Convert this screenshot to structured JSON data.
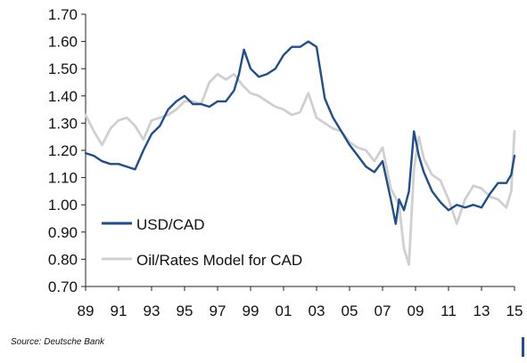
{
  "chart_data": {
    "type": "line",
    "title": "",
    "xlabel": "",
    "ylabel": "",
    "xlim": [
      1989.0,
      2015.0
    ],
    "ylim": [
      0.7,
      1.7
    ],
    "x_ticks": [
      1989,
      1991,
      1993,
      1995,
      1997,
      1999,
      2001,
      2003,
      2005,
      2007,
      2009,
      2011,
      2013,
      2015
    ],
    "x_tick_labels": [
      "89",
      "91",
      "93",
      "95",
      "97",
      "99",
      "01",
      "03",
      "05",
      "07",
      "09",
      "11",
      "13",
      "15"
    ],
    "y_ticks": [
      0.7,
      0.8,
      0.9,
      1.0,
      1.1,
      1.2,
      1.3,
      1.4,
      1.5,
      1.6,
      1.7
    ],
    "y_tick_labels": [
      "0.70",
      "0.80",
      "0.90",
      "1.00",
      "1.10",
      "1.20",
      "1.30",
      "1.40",
      "1.50",
      "1.60",
      "1.70"
    ],
    "grid": false,
    "legend_position": "bottom-left",
    "series": [
      {
        "name": "USD/CAD",
        "color": "#1f4e8c",
        "x": [
          1989.0,
          1989.5,
          1990.0,
          1990.5,
          1991.0,
          1991.5,
          1992.0,
          1992.5,
          1993.0,
          1993.5,
          1994.0,
          1994.5,
          1995.0,
          1995.5,
          1996.0,
          1996.5,
          1997.0,
          1997.5,
          1998.0,
          1998.3,
          1998.6,
          1999.0,
          1999.5,
          2000.0,
          2000.5,
          2001.0,
          2001.5,
          2002.0,
          2002.5,
          2003.0,
          2003.5,
          2004.0,
          2004.5,
          2005.0,
          2005.5,
          2006.0,
          2006.5,
          2007.0,
          2007.5,
          2007.8,
          2008.0,
          2008.3,
          2008.6,
          2008.9,
          2009.2,
          2009.5,
          2010.0,
          2010.5,
          2011.0,
          2011.5,
          2012.0,
          2012.5,
          2013.0,
          2013.5,
          2014.0,
          2014.5,
          2014.8,
          2015.0
        ],
        "values": [
          1.19,
          1.18,
          1.16,
          1.15,
          1.15,
          1.14,
          1.13,
          1.2,
          1.26,
          1.29,
          1.35,
          1.38,
          1.4,
          1.37,
          1.37,
          1.36,
          1.38,
          1.38,
          1.42,
          1.48,
          1.57,
          1.5,
          1.47,
          1.48,
          1.5,
          1.55,
          1.58,
          1.58,
          1.6,
          1.58,
          1.39,
          1.32,
          1.27,
          1.22,
          1.18,
          1.14,
          1.12,
          1.16,
          1.02,
          0.93,
          1.02,
          0.98,
          1.05,
          1.27,
          1.18,
          1.12,
          1.05,
          1.01,
          0.98,
          1.0,
          0.99,
          1.0,
          0.99,
          1.04,
          1.08,
          1.08,
          1.11,
          1.18
        ]
      },
      {
        "name": "Oil/Rates Model for CAD",
        "color": "#d0d0d0",
        "x": [
          1989.0,
          1989.5,
          1990.0,
          1990.5,
          1991.0,
          1991.5,
          1992.0,
          1992.5,
          1993.0,
          1993.5,
          1994.0,
          1994.5,
          1995.0,
          1995.5,
          1996.0,
          1996.5,
          1997.0,
          1997.5,
          1998.0,
          1998.5,
          1999.0,
          1999.5,
          2000.0,
          2000.5,
          2001.0,
          2001.5,
          2002.0,
          2002.5,
          2003.0,
          2003.5,
          2004.0,
          2004.5,
          2005.0,
          2005.5,
          2006.0,
          2006.5,
          2007.0,
          2007.5,
          2008.0,
          2008.3,
          2008.6,
          2008.9,
          2009.2,
          2009.5,
          2010.0,
          2010.5,
          2011.0,
          2011.5,
          2012.0,
          2012.5,
          2013.0,
          2013.5,
          2014.0,
          2014.5,
          2014.8,
          2015.0
        ],
        "values": [
          1.33,
          1.27,
          1.22,
          1.28,
          1.31,
          1.32,
          1.29,
          1.24,
          1.31,
          1.32,
          1.33,
          1.35,
          1.38,
          1.38,
          1.37,
          1.45,
          1.48,
          1.46,
          1.48,
          1.44,
          1.41,
          1.4,
          1.38,
          1.36,
          1.35,
          1.33,
          1.34,
          1.41,
          1.32,
          1.3,
          1.28,
          1.27,
          1.23,
          1.21,
          1.2,
          1.16,
          1.21,
          1.06,
          1.0,
          0.84,
          0.78,
          1.13,
          1.25,
          1.17,
          1.11,
          1.09,
          1.02,
          0.93,
          1.02,
          1.07,
          1.06,
          1.03,
          1.02,
          0.99,
          1.05,
          1.27
        ]
      }
    ]
  },
  "source_note": "Source: Deutsche Bank"
}
